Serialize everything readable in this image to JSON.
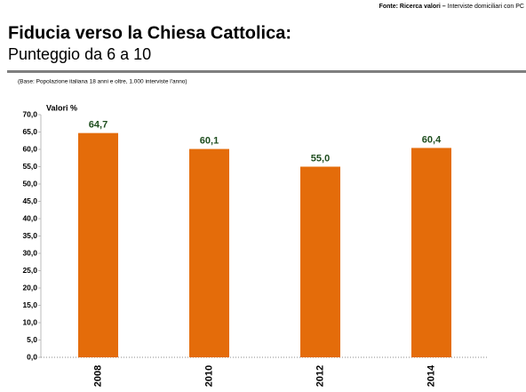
{
  "chart_data": {
    "type": "bar",
    "source": {
      "bold": "Fonte: Ricerca valori –",
      "text": "Interviste domiciliari con PC"
    },
    "title": "Fiducia verso la Chiesa Cattolica:",
    "subtitle": "Punteggio da 6 a 10",
    "note": "(Base: Popolazione italiana 18 anni e oltre, 1.000 interviste l'anno)",
    "ylabel": "Valori %",
    "categories": [
      "2008",
      "2010",
      "2012",
      "2014"
    ],
    "values": [
      64.7,
      60.1,
      55.0,
      60.4
    ],
    "value_labels": [
      "64,7",
      "60,1",
      "55,0",
      "60,4"
    ],
    "color": "#e46c0a",
    "value_label_color": "#1f4e1f",
    "ylim": [
      0,
      70
    ],
    "yticks": [
      {
        "value": 0,
        "label": "0,0"
      },
      {
        "value": 5,
        "label": "5,0"
      },
      {
        "value": 10,
        "label": "10,0"
      },
      {
        "value": 15,
        "label": "15,0"
      },
      {
        "value": 20,
        "label": "20,0"
      },
      {
        "value": 25,
        "label": "25,0"
      },
      {
        "value": 30,
        "label": "30,0"
      },
      {
        "value": 35,
        "label": "35,0"
      },
      {
        "value": 40,
        "label": "40,0"
      },
      {
        "value": 45,
        "label": "45,0"
      },
      {
        "value": 50,
        "label": "50,0"
      },
      {
        "value": 55,
        "label": "55,0"
      },
      {
        "value": 60,
        "label": "60,0"
      },
      {
        "value": 65,
        "label": "65,0"
      },
      {
        "value": 70,
        "label": "70,0"
      }
    ],
    "grid": false
  }
}
